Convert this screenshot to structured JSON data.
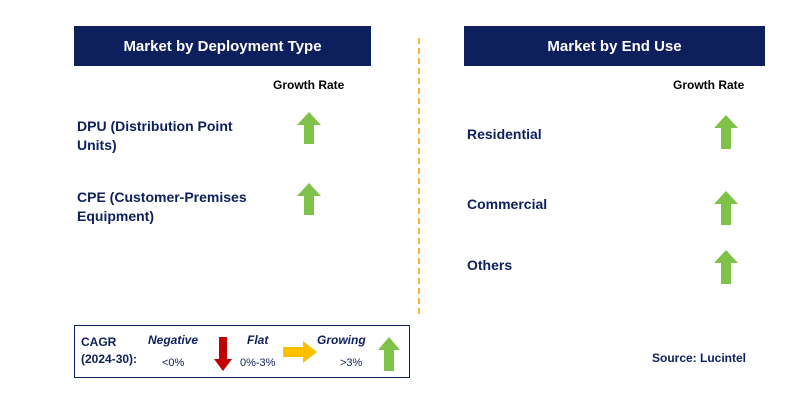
{
  "colors": {
    "header_bg": "#0d1f5c",
    "label_text": "#0d1f5c",
    "arrow_green": "#7ec24a",
    "arrow_red": "#c00000",
    "arrow_yellow": "#ffc000",
    "divider": "#f5b82e"
  },
  "left_panel": {
    "title": "Market by Deployment Type",
    "growth_rate_label": "Growth Rate",
    "items": [
      {
        "label": "DPU (Distribution Point Units)",
        "trend": "growing",
        "icon": "green-up-arrow-icon"
      },
      {
        "label": "CPE (Customer-Premises Equipment)",
        "trend": "growing",
        "icon": "green-up-arrow-icon"
      }
    ]
  },
  "right_panel": {
    "title": "Market by End Use",
    "growth_rate_label": "Growth Rate",
    "items": [
      {
        "label": "Residential",
        "trend": "growing",
        "icon": "green-up-arrow-icon"
      },
      {
        "label": "Commercial",
        "trend": "growing",
        "icon": "green-up-arrow-icon"
      },
      {
        "label": "Others",
        "trend": "growing",
        "icon": "green-up-arrow-icon"
      }
    ]
  },
  "legend": {
    "cagr_label": "CAGR (2024-30):",
    "negative": {
      "label": "Negative",
      "range": "<0%",
      "icon": "red-down-arrow-icon"
    },
    "flat": {
      "label": "Flat",
      "range": "0%-3%",
      "icon": "yellow-right-arrow-icon"
    },
    "growing": {
      "label": "Growing",
      "range": ">3%",
      "icon": "green-up-arrow-icon"
    }
  },
  "source": "Source: Lucintel"
}
